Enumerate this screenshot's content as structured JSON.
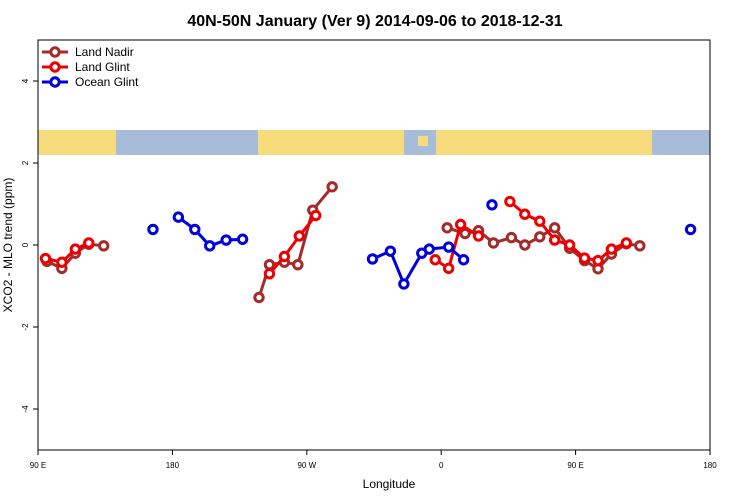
{
  "chart_data": {
    "type": "line",
    "title": "40N-50N January (Ver 9)   2014-09-06 to 2018-12-31",
    "x_label": "Longitude",
    "y_label": "XCO2 - MLO trend (ppm)",
    "xlim": [
      90,
      540
    ],
    "ylim": [
      -5,
      5
    ],
    "xticks": [
      {
        "value": 90,
        "label": "90 E"
      },
      180,
      {
        "value": 270,
        "label": "90 W"
      },
      {
        "value": 360,
        "label": "0"
      },
      {
        "value": 450,
        "label": "90 E"
      },
      {
        "value": 540,
        "label": "180"
      }
    ],
    "yticks": [
      -4,
      -2,
      0,
      2,
      4
    ],
    "legend": "top-left",
    "series": [
      {
        "name": "Land Nadir",
        "color": "#a52a2a",
        "x": [
          96,
          106,
          115,
          124,
          134,
          null,
          238,
          245,
          255,
          264,
          274,
          287,
          null,
          364,
          376,
          385,
          395,
          407,
          416,
          426,
          436,
          446,
          456,
          465,
          474,
          484,
          493
        ],
        "values": [
          -0.4,
          -0.57,
          -0.2,
          0.02,
          -0.02,
          null,
          -1.28,
          -0.48,
          -0.42,
          -0.48,
          0.85,
          1.42,
          null,
          0.42,
          0.28,
          0.35,
          0.05,
          0.18,
          0,
          0.2,
          0.42,
          -0.08,
          -0.38,
          -0.58,
          -0.22,
          0.03,
          -0.02
        ]
      },
      {
        "name": "Land Glint",
        "color": "#ee0000",
        "x": [
          95,
          106,
          115,
          124,
          null,
          245,
          255,
          265,
          276,
          null,
          356,
          365,
          373,
          385,
          null,
          406,
          416,
          426,
          436,
          446,
          456,
          465,
          474,
          484
        ],
        "values": [
          -0.33,
          -0.42,
          -0.1,
          0.05,
          null,
          -0.7,
          -0.28,
          0.22,
          0.72,
          null,
          -0.36,
          -0.57,
          0.5,
          0.22,
          null,
          1.06,
          0.75,
          0.58,
          0.12,
          0,
          -0.32,
          -0.38,
          -0.1,
          0.05
        ]
      },
      {
        "name": "Ocean Glint",
        "color": "#0000dd",
        "x": [
          167,
          null,
          184,
          195,
          205,
          216,
          227,
          null,
          314,
          326,
          335,
          347,
          352,
          365,
          375,
          null,
          394,
          null,
          527
        ],
        "values": [
          0.38,
          null,
          0.68,
          0.38,
          -0.02,
          0.12,
          0.14,
          null,
          -0.34,
          -0.15,
          -0.95,
          -0.2,
          -0.1,
          -0.05,
          -0.36,
          null,
          0.98,
          null,
          0.38
        ]
      }
    ]
  }
}
